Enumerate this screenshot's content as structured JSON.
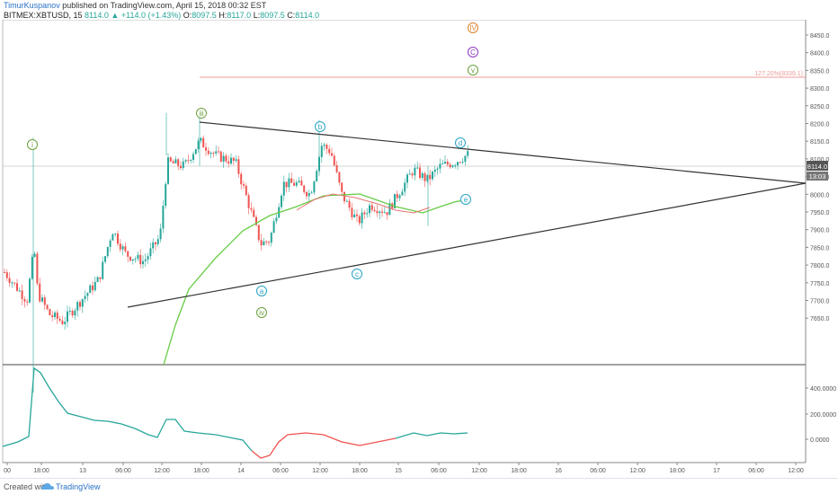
{
  "header": {
    "author": "TimurKuspanov",
    "published_text": "published on TradingView.com, April 15, 2018 00:32 EST",
    "symbol": "BITMEX:XBTUSD, 15",
    "last": "8114.0",
    "change": "+114.0 (+1.43%)",
    "open_label": "O:",
    "open": "8097.5",
    "high_label": "H:",
    "high": "8117.0",
    "low_label": "L:",
    "low": "8097.5",
    "close_label": "C:",
    "close": "8114.0"
  },
  "price_axis": {
    "ticks": [
      "8450.0",
      "8400.0",
      "8350.0",
      "8300.0",
      "8250.0",
      "8200.0",
      "8150.0",
      "8100.0",
      "8050.0",
      "8000.0",
      "7950.0",
      "7900.0",
      "7850.0",
      "7800.0",
      "7750.0",
      "7700.0",
      "7650.0"
    ],
    "last_price_badge": "8114.0",
    "countdown_badge": "13:03"
  },
  "indicator_axis": {
    "ticks": [
      "400.0000",
      "200.0000",
      "0.0000"
    ]
  },
  "time_axis": {
    "ticks": [
      "00",
      "18:00",
      "13",
      "06:00",
      "12:00",
      "18:00",
      "14",
      "06:00",
      "12:00",
      "18:00",
      "15",
      "06:00",
      "12:00",
      "18:00",
      "16",
      "06:00",
      "12:00",
      "18:00",
      "17",
      "06:00",
      "12:00"
    ]
  },
  "annotations": {
    "fib_label": "127.20%(8339.1)",
    "wave_labels": [
      "i",
      "iii",
      "iv",
      "a",
      "b",
      "c",
      "d",
      "e",
      "v",
      "C",
      "IV"
    ]
  },
  "colors": {
    "up": "#26a69a",
    "down": "#ef5350",
    "ma_red": "#e57373",
    "ma_green": "#66cc44",
    "fib_line": "#ef9a9a",
    "trendline": "#333333",
    "indicator_line": "#26a69a",
    "indicator_negative": "#ef5350",
    "wave_green": "#6a9f3a",
    "wave_cyan": "#26a3c4",
    "wave_purple": "#8e3bbf",
    "wave_orange": "#d9822b"
  },
  "footer": {
    "created_with": "Created with",
    "brand": "TradingView"
  }
}
